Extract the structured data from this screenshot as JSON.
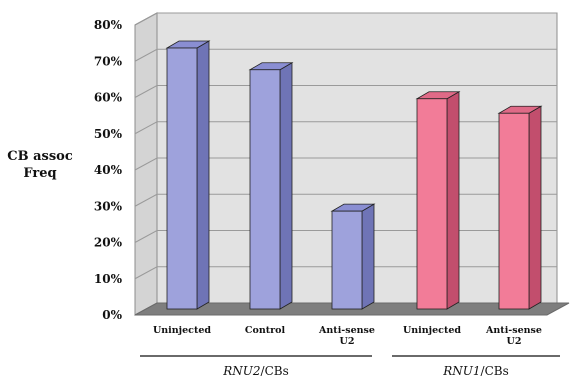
{
  "chart_data": {
    "type": "bar",
    "ylabel": [
      "CB assoc",
      "Freq"
    ],
    "ylim": [
      0,
      80
    ],
    "yticks": [
      "0%",
      "10%",
      "20%",
      "30%",
      "40%",
      "50%",
      "60%",
      "70%",
      "80%"
    ],
    "grid": true,
    "categories": [
      [
        "Uninjected"
      ],
      [
        "Control"
      ],
      [
        "Anti-sense",
        "U2"
      ],
      [
        "Uninjected"
      ],
      [
        "Anti-sense",
        "U2"
      ]
    ],
    "values": [
      72,
      66,
      27,
      58,
      54
    ],
    "groups": [
      {
        "name_italic": "RNU2",
        "name_rest": "/CBs",
        "categories": [
          0,
          1,
          2
        ]
      },
      {
        "name_italic": "RNU1",
        "name_rest": "/CBs",
        "categories": [
          3,
          4
        ]
      }
    ],
    "colors": {
      "RNU2": {
        "front": "#9ea2dc",
        "side": "#6f74b6",
        "top": "#8a8ed2"
      },
      "RNU1": {
        "front": "#f27c98",
        "side": "#c24e6d",
        "top": "#df6a87"
      },
      "wall": "#e2e2e2",
      "floor": "#7e7e7e",
      "grid": "#9a9a9a"
    }
  }
}
